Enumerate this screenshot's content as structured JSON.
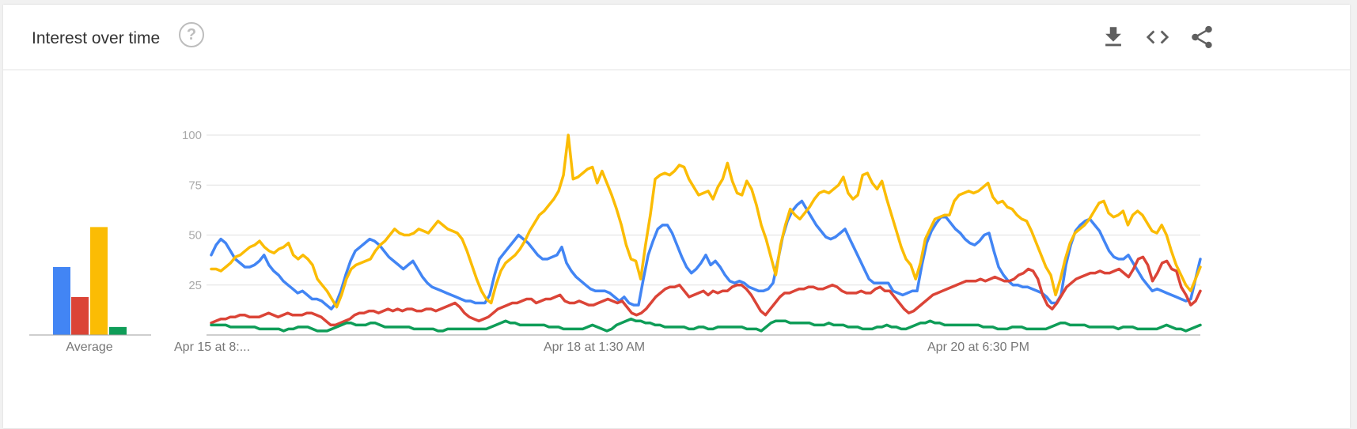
{
  "header": {
    "title": "Interest over time",
    "help_symbol": "?",
    "actions": [
      "download-icon",
      "embed-code-icon",
      "share-icon"
    ]
  },
  "chart_data": {
    "type": "line",
    "ylim": [
      0,
      100
    ],
    "yticks": [
      25,
      50,
      75,
      100
    ],
    "grid": true,
    "xtick_labels": [
      "Apr 15 at 8:...",
      "Apr 18 at 1:30 AM",
      "Apr 20 at 6:30 PM"
    ],
    "colors": [
      "#4285f4",
      "#db4437",
      "#fbbc04",
      "#0f9d58"
    ],
    "series": [
      {
        "values": [
          40,
          45,
          48,
          46,
          42,
          38,
          36,
          34,
          34,
          35,
          37,
          40,
          35,
          32,
          30,
          27,
          25,
          23,
          21,
          22,
          20,
          18,
          18,
          17,
          15,
          13,
          16,
          22,
          30,
          37,
          42,
          44,
          46,
          48,
          47,
          45,
          42,
          39,
          37,
          35,
          33,
          35,
          37,
          33,
          29,
          26,
          24,
          23,
          22,
          21,
          20,
          19,
          18,
          17,
          17,
          16,
          16,
          16,
          20,
          30,
          38,
          41,
          44,
          47,
          50,
          48,
          46,
          43,
          40,
          38,
          38,
          39,
          40,
          44,
          36,
          32,
          29,
          27,
          25,
          23,
          22,
          22,
          22,
          21,
          19,
          17,
          19,
          16,
          15,
          15,
          28,
          40,
          47,
          53,
          55,
          55,
          51,
          45,
          39,
          34,
          31,
          33,
          36,
          40,
          35,
          37,
          34,
          30,
          27,
          26,
          27,
          26,
          24,
          23,
          22,
          22,
          23,
          26,
          37,
          49,
          57,
          62,
          65,
          67,
          63,
          59,
          55,
          52,
          49,
          48,
          49,
          51,
          53,
          48,
          43,
          38,
          33,
          28,
          26,
          26,
          26,
          26,
          22,
          21,
          20,
          21,
          22,
          22,
          35,
          46,
          52,
          56,
          59,
          59,
          56,
          53,
          51,
          48,
          46,
          45,
          47,
          50,
          51,
          42,
          34,
          30,
          27,
          25,
          25,
          24,
          24,
          23,
          22,
          21,
          19,
          16,
          16,
          20,
          35,
          45,
          52,
          55,
          57,
          58,
          55,
          52,
          47,
          42,
          39,
          38,
          38,
          40,
          36,
          32,
          28,
          25,
          22,
          23,
          22,
          21,
          20,
          19,
          18,
          17,
          18,
          28,
          38
        ]
      },
      {
        "values": [
          6,
          7,
          8,
          8,
          9,
          9,
          10,
          10,
          9,
          9,
          9,
          10,
          11,
          10,
          9,
          10,
          11,
          10,
          10,
          10,
          11,
          11,
          10,
          9,
          7,
          5,
          5,
          6,
          7,
          8,
          10,
          11,
          11,
          12,
          12,
          11,
          12,
          13,
          12,
          13,
          12,
          13,
          13,
          12,
          12,
          13,
          13,
          12,
          13,
          14,
          15,
          16,
          14,
          11,
          9,
          8,
          7,
          8,
          9,
          11,
          13,
          14,
          15,
          16,
          16,
          17,
          18,
          18,
          16,
          17,
          18,
          18,
          19,
          20,
          17,
          16,
          16,
          17,
          16,
          15,
          15,
          16,
          17,
          18,
          17,
          16,
          17,
          14,
          11,
          10,
          11,
          13,
          16,
          19,
          21,
          23,
          24,
          24,
          25,
          22,
          19,
          20,
          21,
          22,
          20,
          22,
          21,
          22,
          22,
          24,
          25,
          25,
          23,
          20,
          16,
          12,
          10,
          13,
          16,
          19,
          21,
          21,
          22,
          23,
          23,
          24,
          24,
          23,
          23,
          24,
          25,
          24,
          22,
          21,
          21,
          21,
          22,
          21,
          21,
          23,
          24,
          22,
          22,
          19,
          16,
          13,
          11,
          12,
          14,
          16,
          18,
          20,
          21,
          22,
          23,
          24,
          25,
          26,
          27,
          27,
          27,
          28,
          27,
          28,
          29,
          28,
          27,
          27,
          28,
          30,
          31,
          33,
          32,
          28,
          20,
          15,
          13,
          16,
          20,
          24,
          26,
          28,
          29,
          30,
          31,
          31,
          32,
          31,
          31,
          32,
          33,
          31,
          29,
          33,
          38,
          39,
          35,
          27,
          31,
          36,
          37,
          33,
          32,
          24,
          20,
          15,
          17,
          22
        ]
      },
      {
        "values": [
          33,
          33,
          32,
          34,
          36,
          39,
          40,
          42,
          44,
          45,
          47,
          44,
          42,
          41,
          43,
          44,
          46,
          40,
          38,
          40,
          38,
          35,
          28,
          25,
          22,
          18,
          14,
          20,
          28,
          33,
          35,
          36,
          37,
          38,
          42,
          45,
          47,
          50,
          53,
          51,
          50,
          50,
          51,
          53,
          52,
          51,
          54,
          57,
          55,
          53,
          52,
          51,
          48,
          42,
          35,
          28,
          22,
          18,
          16,
          25,
          32,
          36,
          38,
          40,
          43,
          47,
          52,
          56,
          60,
          62,
          65,
          68,
          72,
          80,
          100,
          78,
          79,
          81,
          83,
          84,
          76,
          82,
          76,
          70,
          63,
          55,
          45,
          38,
          37,
          28,
          45,
          60,
          78,
          80,
          81,
          80,
          82,
          85,
          84,
          78,
          74,
          70,
          71,
          72,
          68,
          74,
          78,
          86,
          77,
          71,
          70,
          77,
          73,
          65,
          55,
          48,
          39,
          30,
          45,
          55,
          63,
          60,
          58,
          61,
          64,
          68,
          71,
          72,
          71,
          73,
          75,
          79,
          71,
          68,
          70,
          80,
          81,
          76,
          73,
          77,
          68,
          60,
          52,
          44,
          38,
          35,
          28,
          36,
          48,
          53,
          58,
          59,
          60,
          60,
          67,
          70,
          71,
          72,
          71,
          72,
          74,
          76,
          69,
          66,
          67,
          64,
          63,
          60,
          58,
          57,
          52,
          46,
          40,
          34,
          30,
          20,
          28,
          38,
          46,
          51,
          53,
          55,
          58,
          62,
          66,
          67,
          61,
          59,
          60,
          62,
          55,
          60,
          62,
          60,
          56,
          52,
          51,
          55,
          50,
          42,
          35,
          30,
          25,
          22,
          28,
          34
        ]
      },
      {
        "values": [
          5,
          5,
          5,
          5,
          4,
          4,
          4,
          4,
          4,
          4,
          3,
          3,
          3,
          3,
          3,
          2,
          3,
          3,
          4,
          4,
          4,
          3,
          2,
          2,
          2,
          3,
          4,
          5,
          6,
          6,
          5,
          5,
          5,
          6,
          6,
          5,
          4,
          4,
          4,
          4,
          4,
          4,
          3,
          3,
          3,
          3,
          3,
          2,
          2,
          3,
          3,
          3,
          3,
          3,
          3,
          3,
          3,
          3,
          4,
          5,
          6,
          7,
          6,
          6,
          5,
          5,
          5,
          5,
          5,
          5,
          4,
          4,
          4,
          3,
          3,
          3,
          3,
          3,
          4,
          5,
          4,
          3,
          2,
          3,
          5,
          6,
          7,
          8,
          7,
          7,
          6,
          6,
          5,
          5,
          4,
          4,
          4,
          4,
          4,
          3,
          3,
          4,
          4,
          3,
          3,
          4,
          4,
          4,
          4,
          4,
          4,
          3,
          3,
          3,
          2,
          4,
          6,
          7,
          7,
          7,
          6,
          6,
          6,
          6,
          6,
          5,
          5,
          5,
          6,
          5,
          5,
          5,
          4,
          4,
          4,
          3,
          3,
          3,
          4,
          4,
          5,
          4,
          4,
          3,
          3,
          4,
          5,
          6,
          6,
          7,
          6,
          6,
          5,
          5,
          5,
          5,
          5,
          5,
          5,
          5,
          4,
          4,
          4,
          3,
          3,
          3,
          4,
          4,
          4,
          3,
          3,
          3,
          3,
          3,
          4,
          5,
          6,
          6,
          5,
          5,
          5,
          5,
          4,
          4,
          4,
          4,
          4,
          4,
          3,
          4,
          4,
          4,
          3,
          3,
          3,
          3,
          3,
          4,
          5,
          4,
          3,
          3,
          2,
          3,
          4,
          5
        ]
      }
    ],
    "average": {
      "label": "Average",
      "values": [
        34,
        19,
        54,
        4
      ]
    }
  }
}
